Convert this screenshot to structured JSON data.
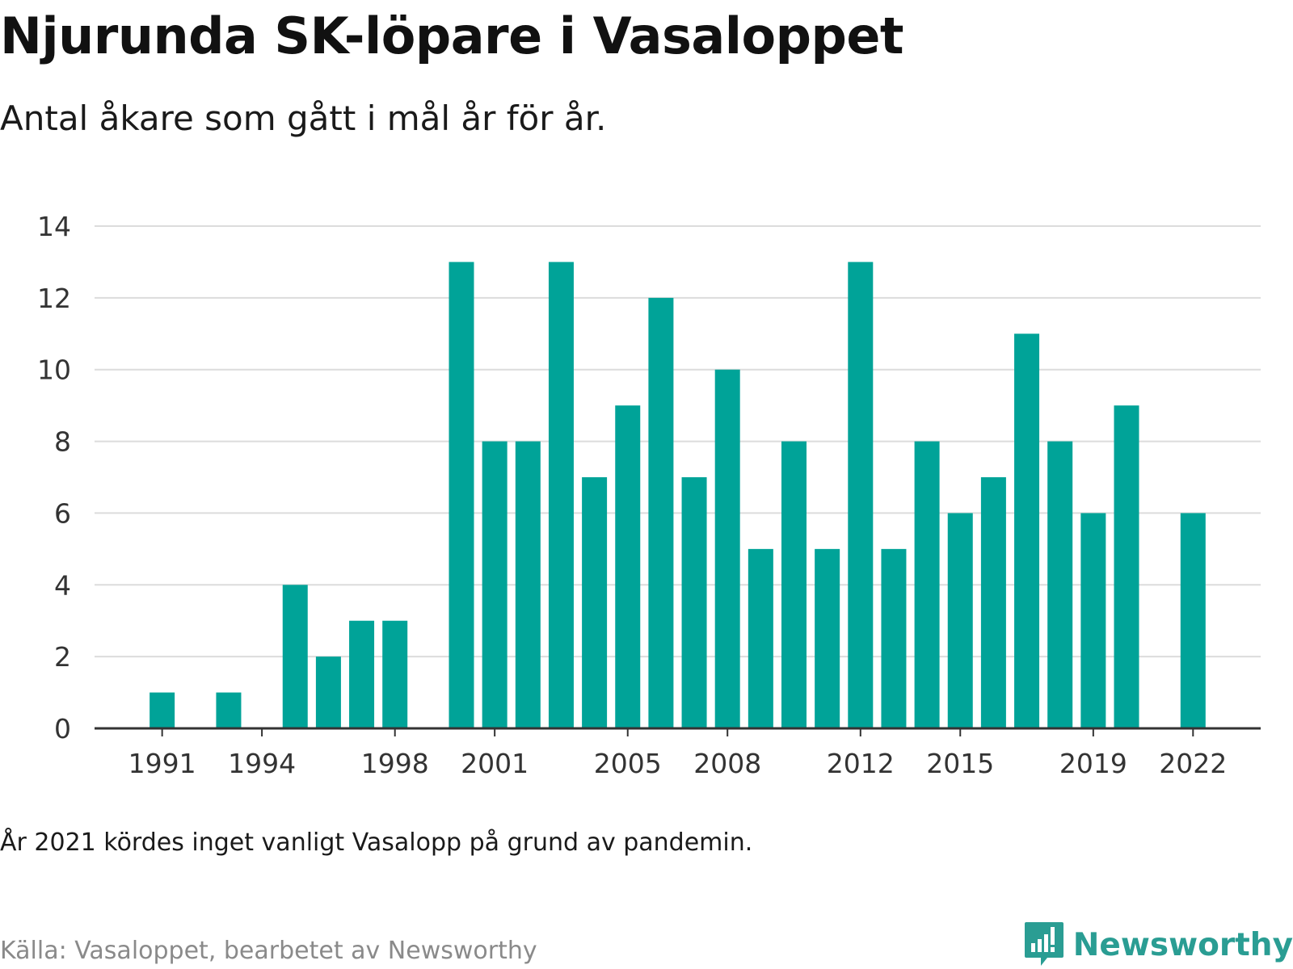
{
  "header": {
    "title": "Njurunda SK-löpare i Vasaloppet",
    "subtitle": "Antal åkare som gått i mål år för år."
  },
  "footer": {
    "note": "År 2021 kördes inget vanligt Vasalopp på grund av pandemin.",
    "source": "Källa: Vasaloppet, bearbetet av Newsworthy",
    "brand": "Newsworthy",
    "brand_icon": "bar-chart-speech-bubble-icon"
  },
  "colors": {
    "bar": "#00a398",
    "grid": "#dcdcdc",
    "axis": "#333333",
    "brand": "#2a9d93"
  },
  "chart_data": {
    "type": "bar",
    "title": "",
    "xlabel": "",
    "ylabel": "",
    "categories": [
      1990,
      1991,
      1992,
      1993,
      1994,
      1995,
      1996,
      1997,
      1998,
      1999,
      2000,
      2001,
      2002,
      2003,
      2004,
      2005,
      2006,
      2007,
      2008,
      2009,
      2010,
      2011,
      2012,
      2013,
      2014,
      2015,
      2016,
      2017,
      2018,
      2019,
      2020,
      2021,
      2022
    ],
    "values": [
      0,
      1,
      0,
      1,
      0,
      4,
      2,
      3,
      3,
      0,
      13,
      8,
      8,
      13,
      7,
      9,
      12,
      7,
      10,
      5,
      8,
      5,
      13,
      5,
      8,
      6,
      7,
      11,
      8,
      6,
      9,
      0,
      6
    ],
    "x_tick_labels": [
      "1991",
      "1994",
      "1998",
      "2001",
      "2005",
      "2008",
      "2012",
      "2015",
      "2019",
      "2022"
    ],
    "y_ticks": [
      0,
      2,
      4,
      6,
      8,
      10,
      12,
      14
    ],
    "ylim": [
      0,
      14
    ],
    "grid": true,
    "legend": "none"
  }
}
